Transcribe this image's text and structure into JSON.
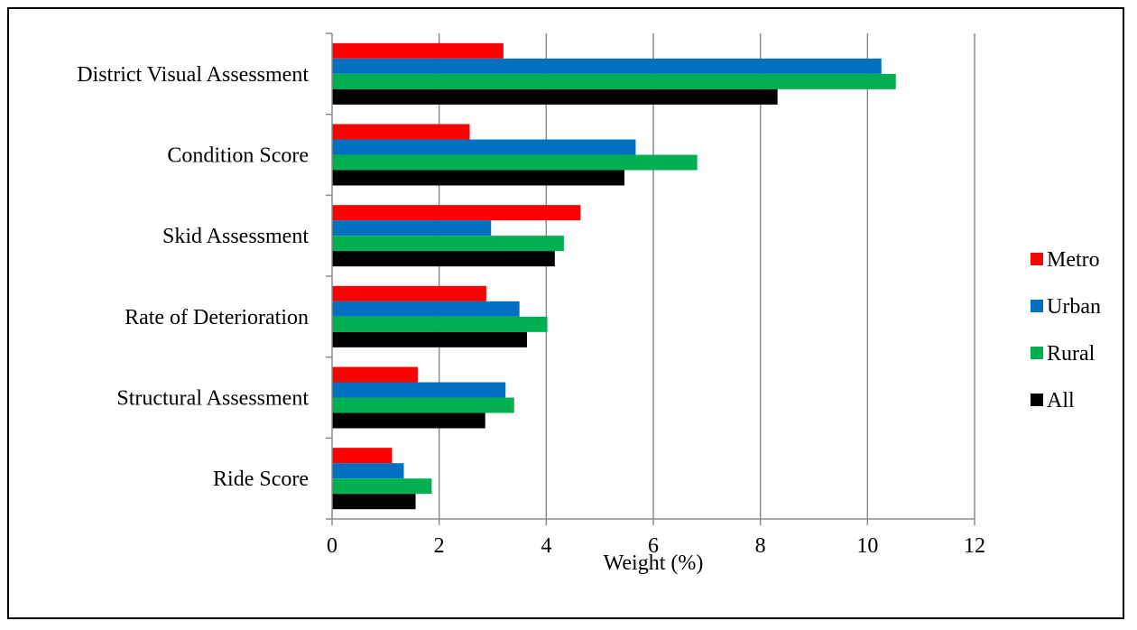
{
  "chart_data": {
    "type": "bar",
    "orientation": "horizontal",
    "categories": [
      "District Visual Assessment",
      "Condition Score",
      "Skid Assessment",
      "Rate of Deterioration",
      "Structural Assessment",
      "Ride Score"
    ],
    "series": [
      {
        "name": "Metro",
        "color": "#ff0000",
        "values": [
          3.2,
          2.57,
          4.64,
          2.88,
          1.6,
          1.12
        ]
      },
      {
        "name": "Urban",
        "color": "#0070c0",
        "values": [
          10.26,
          5.67,
          2.97,
          3.5,
          3.24,
          1.34
        ]
      },
      {
        "name": "Rural",
        "color": "#00b050",
        "values": [
          10.53,
          6.82,
          4.33,
          4.02,
          3.4,
          1.86
        ]
      },
      {
        "name": "All",
        "color": "#000000",
        "values": [
          8.32,
          5.46,
          4.16,
          3.64,
          2.86,
          1.56
        ]
      }
    ],
    "xlabel": "Weight (%)",
    "ylabel": "",
    "xlim": [
      0,
      12
    ],
    "xticks": [
      "0",
      "2",
      "4",
      "6",
      "8",
      "10",
      "12"
    ],
    "grid": "vertical",
    "legend_position": "right"
  }
}
